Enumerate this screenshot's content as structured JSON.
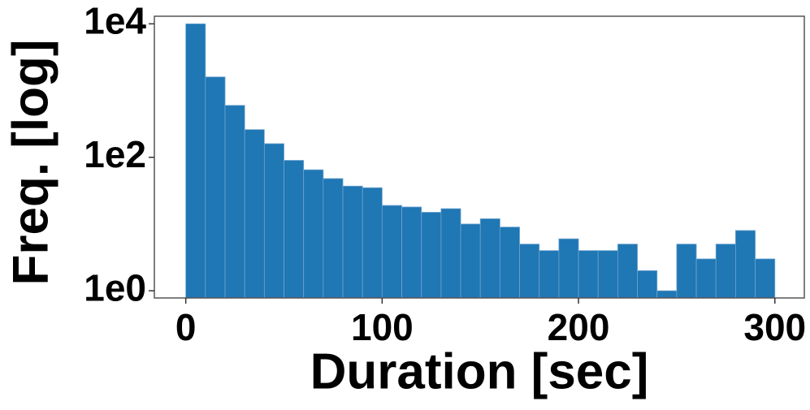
{
  "chart_data": {
    "type": "histogram",
    "x_label": "Duration [sec]",
    "y_label": "Freq. [log]",
    "bins": [
      0,
      10,
      20,
      30,
      40,
      50,
      60,
      70,
      80,
      90,
      100,
      110,
      120,
      130,
      140,
      150,
      160,
      170,
      180,
      190,
      200,
      210,
      220,
      230,
      240,
      250,
      260,
      270,
      280,
      290,
      300
    ],
    "values": [
      10000,
      1600,
      600,
      260,
      160,
      90,
      65,
      48,
      37,
      35,
      19,
      18,
      15,
      17,
      10,
      12,
      9,
      5,
      4,
      6,
      4,
      4,
      5,
      2,
      1,
      5,
      3,
      5,
      8,
      3
    ],
    "color": "#1f77b4",
    "log_y": true,
    "xlim": [
      -16,
      315
    ],
    "xticks": [
      0,
      100,
      200,
      300
    ],
    "ylim": [
      0.78,
      13000
    ],
    "yticks": [
      {
        "value": 1,
        "label": "1e0"
      },
      {
        "value": 100,
        "label": "1e2"
      },
      {
        "value": 10000,
        "label": "1e4"
      }
    ],
    "grid": false
  }
}
